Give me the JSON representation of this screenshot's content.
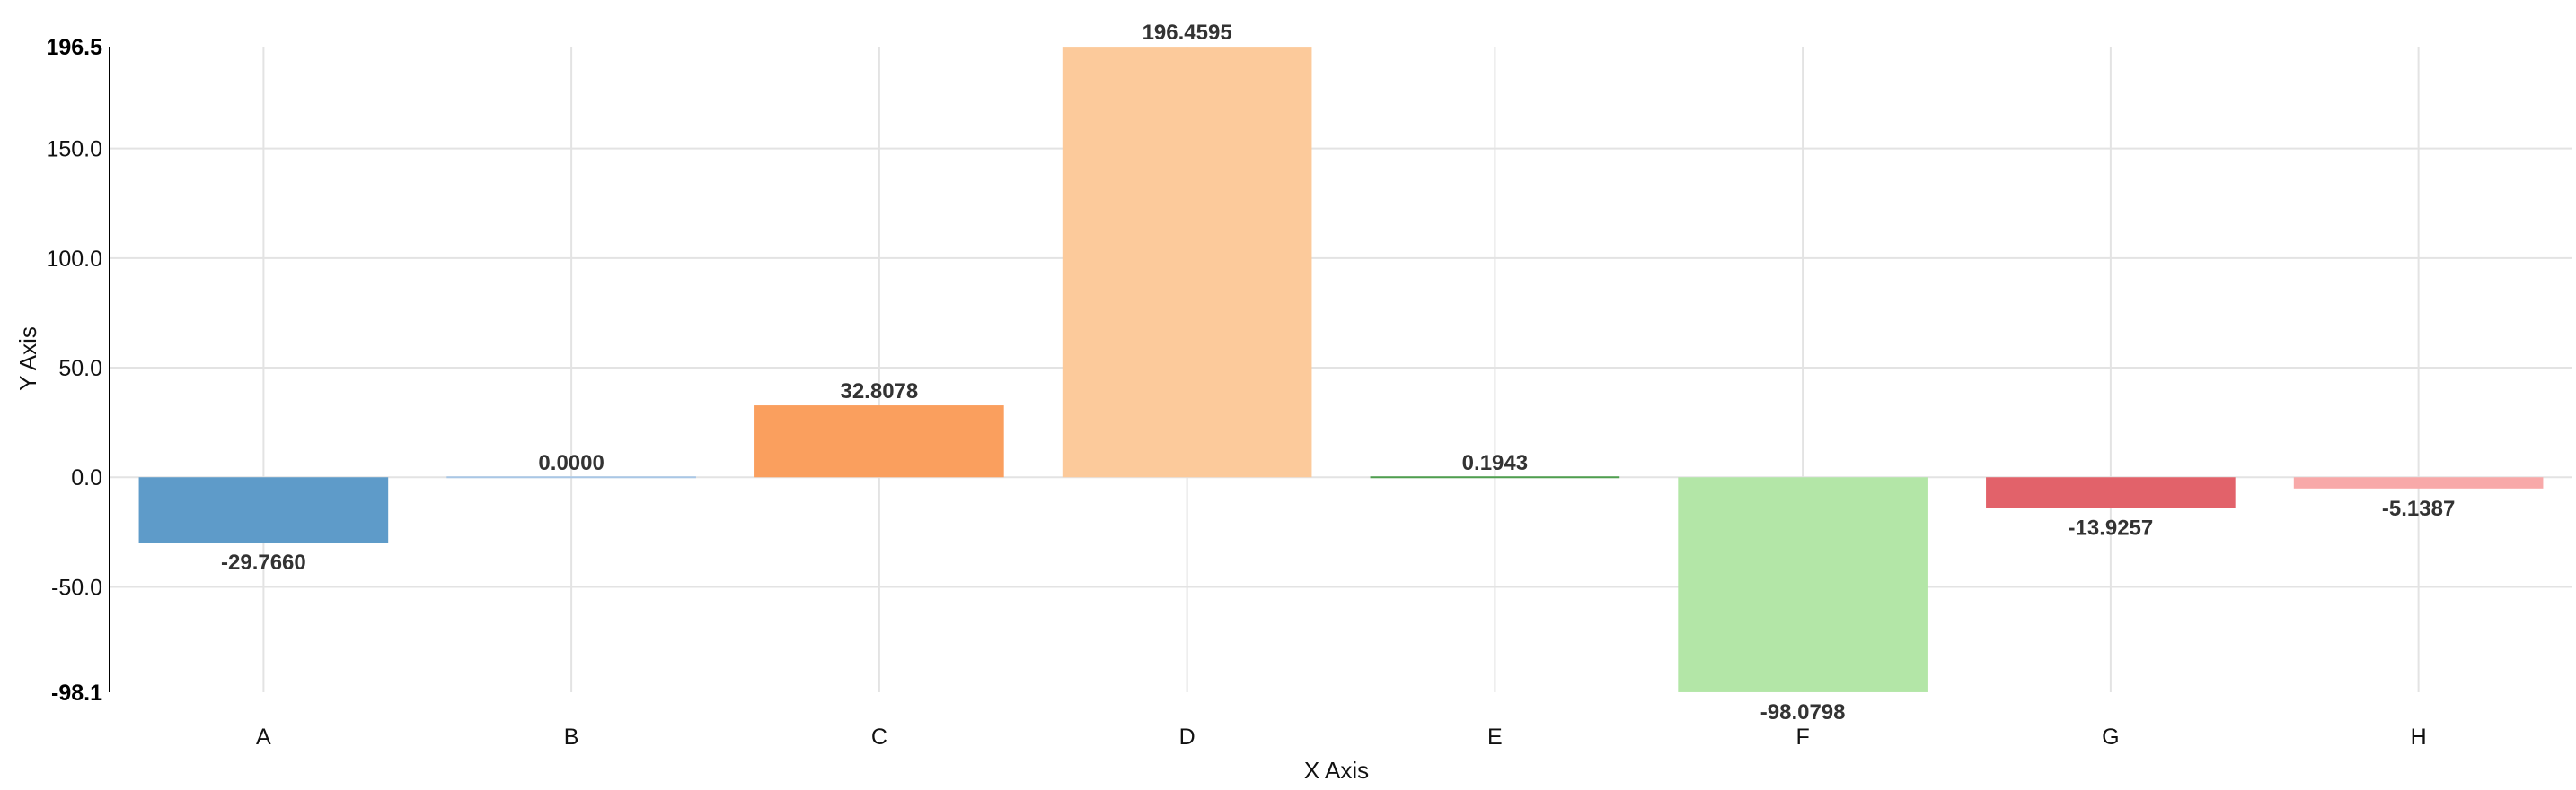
{
  "chart_data": {
    "type": "bar",
    "title": "",
    "xlabel": "X Axis",
    "ylabel": "Y Axis",
    "categories": [
      "A",
      "B",
      "C",
      "D",
      "E",
      "F",
      "G",
      "H"
    ],
    "values": [
      -29.766,
      0.0,
      32.8078,
      196.4595,
      0.1943,
      -98.0798,
      -13.9257,
      -5.1387
    ],
    "value_labels": [
      "-29.7660",
      "0.0000",
      "32.8078",
      "196.4595",
      "0.1943",
      "-98.0798",
      "-13.9257",
      "-5.1387"
    ],
    "colors": [
      "#5e9bc9",
      "#a9c7e6",
      "#fa9f5e",
      "#fcca9b",
      "#4f9f4f",
      "#b3e6a7",
      "#e2626a",
      "#f8a9a9"
    ],
    "ylim": [
      -98.1,
      196.5
    ],
    "yticks": [
      -50.0,
      0.0,
      50.0,
      100.0,
      150.0
    ],
    "ytick_labels": [
      "-50.0",
      "0.0",
      "50.0",
      "100.0",
      "150.0"
    ],
    "ylim_labels": [
      "-98.1",
      "196.5"
    ],
    "grid": true,
    "legend": "none"
  }
}
